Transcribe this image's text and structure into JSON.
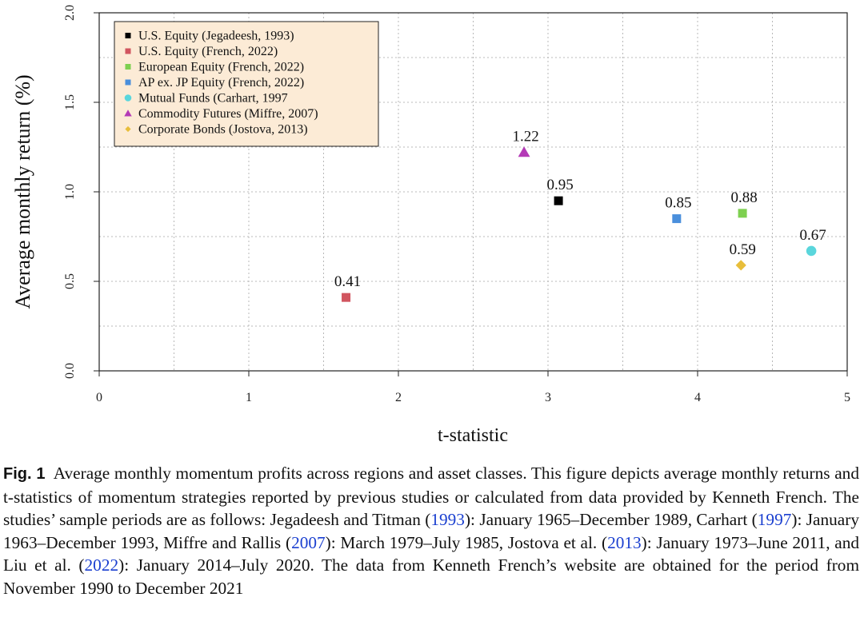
{
  "chart_data": {
    "type": "scatter",
    "xlabel": "t-statistic",
    "ylabel": "Average monthly return (%)",
    "xlim": [
      0,
      5
    ],
    "ylim": [
      0,
      2.0
    ],
    "x_ticks": [
      "0",
      "1",
      "2",
      "3",
      "4",
      "5"
    ],
    "y_ticks": [
      "0.0",
      "0.5",
      "1.0",
      "1.5",
      "2.0"
    ],
    "grid": true,
    "legend_position": "top-left",
    "series": [
      {
        "name": "U.S. Equity (Jegadeesh, 1993)",
        "marker": "square",
        "color": "#000000",
        "x": 3.07,
        "y": 0.95,
        "label": "0.95"
      },
      {
        "name": "U.S. Equity (French, 2022)",
        "marker": "square",
        "color": "#d1555f",
        "x": 1.65,
        "y": 0.41,
        "label": "0.41"
      },
      {
        "name": "European Equity (French, 2022)",
        "marker": "square",
        "color": "#7ed050",
        "x": 4.3,
        "y": 0.88,
        "label": "0.88"
      },
      {
        "name": "AP ex. JP Equity (French, 2022)",
        "marker": "square",
        "color": "#4a8fdc",
        "x": 3.86,
        "y": 0.85,
        "label": "0.85"
      },
      {
        "name": "Mutual Funds (Carhart, 1997",
        "marker": "circle",
        "color": "#5ad6dc",
        "x": 4.76,
        "y": 0.67,
        "label": "0.67"
      },
      {
        "name": "Commodity Futures (Miffre, 2007)",
        "marker": "triangle",
        "color": "#b43ab6",
        "x": 2.84,
        "y": 1.22,
        "label": "1.22"
      },
      {
        "name": "Corporate Bonds (Jostova, 2013)",
        "marker": "diamond",
        "color": "#e8be3a",
        "x": 4.29,
        "y": 0.59,
        "label": "0.59"
      }
    ]
  },
  "colors": {
    "legend_background": "#fcebd6",
    "grid": "#b8b8b8",
    "link": "#1a3fd0"
  },
  "caption": {
    "label": "Fig. 1",
    "text_1": "Average monthly momentum profits across regions and asset classes. This figure depicts average monthly returns and t-statistics of momentum strategies reported by previous studies or calculated from data provided by Kenneth French. The studies’ sample periods are as follows: Jegadeesh and Titman (",
    "ref_1": "1993",
    "text_2": "): January 1965–December 1989, Carhart (",
    "ref_2": "1997",
    "text_3": "): January 1963–December 1993, Miffre and Rallis (",
    "ref_3": "2007",
    "text_4": "): March 1979–July 1985, Jostova et al. (",
    "ref_4": "2013",
    "text_5": "): January 1973–June 2011, and Liu et al. (",
    "ref_5": "2022",
    "text_6": "): January 2014–July 2020. The data from Kenneth French’s website are obtained for the period from November 1990 to December 2021"
  }
}
